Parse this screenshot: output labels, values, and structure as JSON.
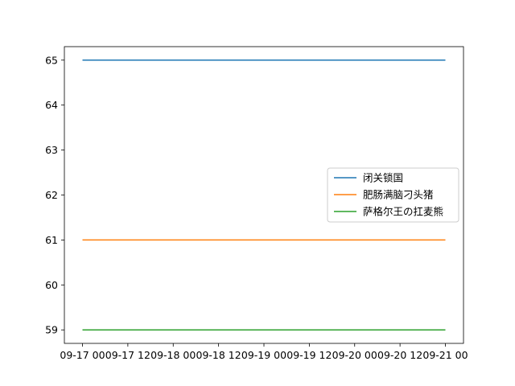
{
  "chart_data": {
    "type": "line",
    "title": "",
    "xlabel": "",
    "ylabel": "",
    "x": [
      "09-17 00",
      "09-17 12",
      "09-18 00",
      "09-18 12",
      "09-19 00",
      "09-19 12",
      "09-20 00",
      "09-20 12",
      "09-21 00"
    ],
    "xlim": [
      "09-17 00",
      "09-21 00"
    ],
    "yticks": [
      59,
      60,
      61,
      62,
      63,
      64,
      65
    ],
    "ylim": [
      58.7,
      65.3
    ],
    "grid": false,
    "legend_position": "center-right",
    "series": [
      {
        "name": "闭关锁国",
        "color": "#1f77b4",
        "points": [
          [
            "09-17 00",
            65
          ],
          [
            "09-21 00",
            65
          ]
        ]
      },
      {
        "name": "肥肠满脑刁头猪",
        "color": "#ff7f0e",
        "points": [
          [
            "09-17 00",
            61
          ],
          [
            "09-21 00",
            61
          ]
        ]
      },
      {
        "name": "萨格尔王の扛麦熊",
        "color": "#2ca02c",
        "points": [
          [
            "09-17 00",
            59
          ],
          [
            "09-21 00",
            59
          ]
        ]
      }
    ]
  }
}
